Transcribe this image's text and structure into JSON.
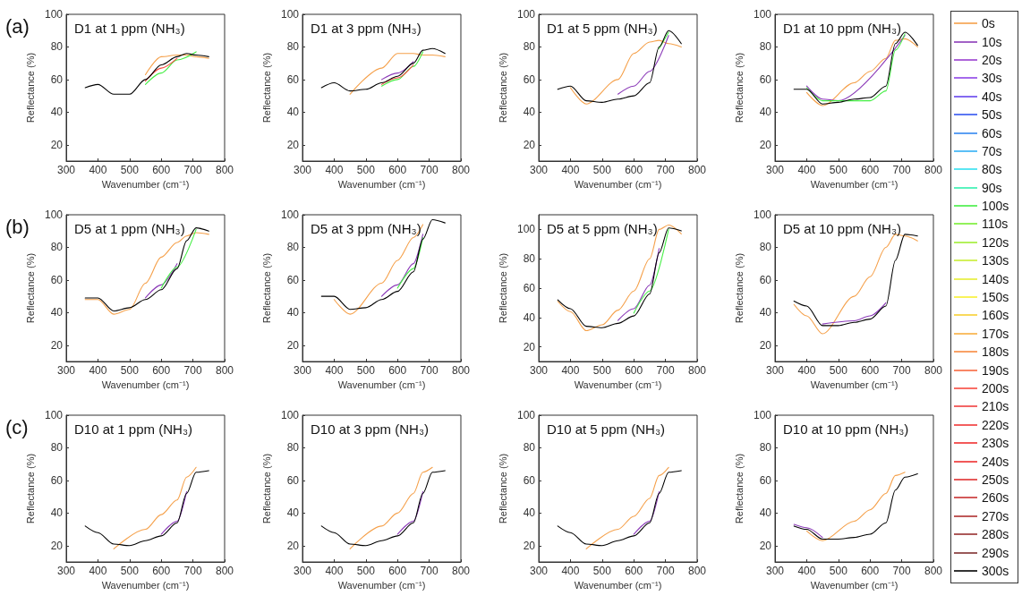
{
  "chart_data": [
    {
      "type": "line",
      "title": "D1 at 1 ppm (NH₃)",
      "xlabel": "Wavenumber (cm⁻¹)",
      "ylabel": "Reflectance (%)",
      "annotations": [
        "(a)"
      ],
      "legend": "right",
      "marker": "none",
      "x": [
        360,
        400,
        450,
        500,
        550,
        600,
        650,
        680,
        710,
        750
      ],
      "xlim": [
        300,
        800
      ],
      "xticks": [
        300,
        400,
        500,
        600,
        700,
        800
      ],
      "ylim": [
        10,
        100
      ],
      "yticks": [
        20,
        40,
        60,
        80,
        100
      ],
      "series": [
        {
          "name": "0s",
          "color": "#f5a04a",
          "values": [
            null,
            null,
            null,
            null,
            63,
            74,
            75,
            75,
            74,
            73
          ]
        },
        {
          "name": "10s",
          "color": "#8b3ab8",
          "values": [
            null,
            null,
            null,
            null,
            null,
            null,
            null,
            null,
            null,
            null
          ]
        },
        {
          "name": "20s",
          "color": "#9a3fd0",
          "values": [
            null,
            null,
            null,
            null,
            null,
            null,
            null,
            null,
            null,
            null
          ]
        },
        {
          "name": "30s",
          "color": "#8f45e8",
          "values": [
            null,
            null,
            null,
            null,
            null,
            null,
            null,
            null,
            null,
            null
          ]
        },
        {
          "name": "40s",
          "color": "#6644ee",
          "values": [
            null,
            null,
            null,
            null,
            null,
            null,
            null,
            null,
            null,
            null
          ]
        },
        {
          "name": "50s",
          "color": "#3355f0",
          "values": [
            null,
            null,
            null,
            null,
            null,
            null,
            null,
            null,
            null,
            null
          ]
        },
        {
          "name": "60s",
          "color": "#3388f0",
          "values": [
            null,
            null,
            null,
            null,
            null,
            null,
            null,
            null,
            null,
            null
          ]
        },
        {
          "name": "70s",
          "color": "#33b0f5",
          "values": [
            null,
            null,
            null,
            null,
            null,
            null,
            null,
            null,
            null,
            null
          ]
        },
        {
          "name": "80s",
          "color": "#33e0f0",
          "values": [
            null,
            null,
            null,
            null,
            null,
            null,
            null,
            null,
            null,
            null
          ]
        },
        {
          "name": "90s",
          "color": "#33f0b0",
          "values": [
            null,
            null,
            null,
            null,
            null,
            null,
            null,
            null,
            null,
            null
          ]
        },
        {
          "name": "100s",
          "color": "#44ee44",
          "values": [
            null,
            null,
            null,
            null,
            57,
            64,
            72,
            null,
            77,
            null
          ]
        },
        {
          "name": "110s",
          "color": "#77ee33",
          "values": [
            null,
            null,
            null,
            null,
            null,
            null,
            null,
            null,
            null,
            null
          ]
        },
        {
          "name": "120s",
          "color": "#a0ee33",
          "values": [
            null,
            null,
            null,
            null,
            null,
            null,
            null,
            null,
            null,
            null
          ]
        },
        {
          "name": "130s",
          "color": "#c8ee33",
          "values": [
            null,
            null,
            null,
            null,
            null,
            null,
            null,
            null,
            null,
            null
          ]
        },
        {
          "name": "140s",
          "color": "#e6ee33",
          "values": [
            null,
            null,
            null,
            null,
            null,
            null,
            null,
            null,
            null,
            null
          ]
        },
        {
          "name": "150s",
          "color": "#f8f033",
          "values": [
            null,
            null,
            null,
            null,
            null,
            null,
            null,
            null,
            null,
            null
          ]
        },
        {
          "name": "160s",
          "color": "#f8d033",
          "values": [
            null,
            null,
            null,
            null,
            null,
            null,
            null,
            null,
            null,
            null
          ]
        },
        {
          "name": "170s",
          "color": "#f8b040",
          "values": [
            null,
            null,
            null,
            null,
            null,
            null,
            null,
            null,
            null,
            null
          ]
        },
        {
          "name": "180s",
          "color": "#f88a40",
          "values": [
            null,
            null,
            null,
            null,
            null,
            null,
            null,
            null,
            null,
            null
          ]
        },
        {
          "name": "190s",
          "color": "#f86a40",
          "values": [
            null,
            null,
            null,
            null,
            null,
            null,
            null,
            null,
            null,
            null
          ]
        },
        {
          "name": "200s",
          "color": "#f84a40",
          "values": [
            null,
            null,
            null,
            null,
            59,
            67,
            73,
            null,
            null,
            null
          ]
        },
        {
          "name": "210s",
          "color": "#f04040",
          "values": [
            null,
            null,
            null,
            null,
            null,
            null,
            null,
            null,
            null,
            null
          ]
        },
        {
          "name": "220s",
          "color": "#f03838",
          "values": [
            null,
            null,
            null,
            null,
            null,
            null,
            null,
            null,
            null,
            null
          ]
        },
        {
          "name": "230s",
          "color": "#f03030",
          "values": [
            null,
            null,
            null,
            null,
            null,
            null,
            null,
            null,
            null,
            null
          ]
        },
        {
          "name": "240s",
          "color": "#ee3030",
          "values": [
            null,
            null,
            null,
            null,
            null,
            null,
            null,
            null,
            null,
            null
          ]
        },
        {
          "name": "250s",
          "color": "#e03030",
          "values": [
            null,
            null,
            null,
            null,
            null,
            null,
            null,
            null,
            null,
            null
          ]
        },
        {
          "name": "260s",
          "color": "#c83030",
          "values": [
            null,
            null,
            null,
            null,
            null,
            null,
            null,
            null,
            null,
            null
          ]
        },
        {
          "name": "270s",
          "color": "#b03030",
          "values": [
            null,
            null,
            null,
            null,
            null,
            null,
            null,
            null,
            null,
            null
          ]
        },
        {
          "name": "280s",
          "color": "#983030",
          "values": [
            null,
            null,
            null,
            null,
            null,
            null,
            null,
            null,
            null,
            null
          ]
        },
        {
          "name": "290s",
          "color": "#803030",
          "values": [
            null,
            null,
            null,
            null,
            null,
            null,
            null,
            null,
            null,
            null
          ]
        },
        {
          "name": "300s",
          "color": "#000000",
          "values": [
            55,
            57,
            51,
            51,
            60,
            69,
            74,
            76,
            75,
            74
          ]
        }
      ]
    },
    {
      "type": "line",
      "title": "D1 at 3 ppm (NH₃)",
      "xlabel": "Wavenumber (cm⁻¹)",
      "ylabel": "Reflectance (%)",
      "marker": "none",
      "x": [
        360,
        400,
        450,
        500,
        550,
        600,
        650,
        680,
        710,
        750
      ],
      "xlim": [
        300,
        800
      ],
      "xticks": [
        300,
        400,
        500,
        600,
        700,
        800
      ],
      "ylim": [
        10,
        100
      ],
      "yticks": [
        20,
        40,
        60,
        80,
        100
      ],
      "series": [
        {
          "color": "#f5a04a",
          "values": [
            null,
            null,
            51,
            null,
            67,
            76,
            76,
            75,
            75,
            74
          ]
        },
        {
          "color": "#8b3ab8",
          "values": [
            null,
            null,
            null,
            null,
            60,
            64,
            71,
            null,
            null,
            null
          ]
        },
        {
          "color": "#44ee44",
          "values": [
            null,
            null,
            null,
            null,
            56,
            60,
            68,
            77,
            null,
            null
          ]
        },
        {
          "color": "#f84a40",
          "values": [
            null,
            null,
            null,
            null,
            57,
            61,
            69,
            null,
            null,
            null
          ]
        },
        {
          "color": "#000000",
          "values": [
            55,
            58,
            53,
            54,
            58,
            62,
            70,
            78,
            79,
            76
          ]
        }
      ]
    },
    {
      "type": "line",
      "title": "D1 at 5 ppm (NH₃)",
      "xlabel": "Wavenumber (cm⁻¹)",
      "ylabel": "Reflectance (%)",
      "marker": "none",
      "x": [
        360,
        400,
        450,
        500,
        550,
        600,
        650,
        680,
        710,
        750
      ],
      "xlim": [
        300,
        800
      ],
      "xticks": [
        300,
        400,
        500,
        600,
        700,
        800
      ],
      "ylim": [
        10,
        100
      ],
      "yticks": [
        20,
        40,
        60,
        80,
        100
      ],
      "series": [
        {
          "color": "#f5a04a",
          "values": [
            null,
            55,
            45,
            null,
            60,
            76,
            83,
            84,
            82,
            80
          ]
        },
        {
          "color": "#8b3ab8",
          "values": [
            null,
            null,
            null,
            null,
            51,
            56,
            65,
            null,
            87,
            null
          ]
        },
        {
          "color": "#44ee44",
          "values": [
            null,
            null,
            null,
            null,
            null,
            null,
            null,
            79,
            89,
            null
          ]
        },
        {
          "color": "#000000",
          "values": [
            54,
            56,
            47,
            46,
            48,
            50,
            58,
            80,
            90,
            82
          ]
        }
      ]
    },
    {
      "type": "line",
      "title": "D1 at 10 ppm (NH₃)",
      "xlabel": "Wavenumber (cm⁻¹)",
      "ylabel": "Reflectance (%)",
      "marker": "none",
      "x": [
        360,
        400,
        450,
        500,
        550,
        600,
        650,
        680,
        710,
        750
      ],
      "xlim": [
        300,
        800
      ],
      "xticks": [
        300,
        400,
        500,
        600,
        700,
        800
      ],
      "ylim": [
        10,
        100
      ],
      "yticks": [
        20,
        40,
        60,
        80,
        100
      ],
      "series": [
        {
          "color": "#f5a04a",
          "values": [
            null,
            52,
            44,
            null,
            58,
            65,
            73,
            84,
            85,
            80
          ]
        },
        {
          "color": "#8b3ab8",
          "values": [
            null,
            56,
            48,
            47,
            null,
            null,
            null,
            null,
            87,
            null
          ]
        },
        {
          "color": "#44ee44",
          "values": [
            null,
            55,
            47,
            null,
            47,
            47,
            53,
            78,
            88,
            null
          ]
        },
        {
          "color": "#000000",
          "values": [
            54,
            54,
            45,
            46,
            48,
            49,
            56,
            82,
            89,
            81
          ]
        }
      ]
    },
    {
      "type": "line",
      "title": "D5 at 1 ppm (NH₃)",
      "xlabel": "Wavenumber (cm⁻¹)",
      "ylabel": "Reflectance (%)",
      "annotations": [
        "(b)"
      ],
      "marker": "none",
      "x": [
        360,
        400,
        450,
        500,
        550,
        600,
        650,
        680,
        710,
        750
      ],
      "xlim": [
        300,
        800
      ],
      "xticks": [
        300,
        400,
        500,
        600,
        700,
        800
      ],
      "ylim": [
        10,
        100
      ],
      "yticks": [
        20,
        40,
        60,
        80,
        100
      ],
      "series": [
        {
          "color": "#f5a04a",
          "values": [
            48,
            48,
            39,
            42,
            58,
            74,
            83,
            87,
            89,
            88
          ]
        },
        {
          "color": "#8b3ab8",
          "values": [
            null,
            null,
            null,
            null,
            49,
            57,
            70,
            null,
            null,
            null
          ]
        },
        {
          "color": "#44ee44",
          "values": [
            null,
            null,
            null,
            null,
            null,
            55,
            68,
            null,
            91,
            null
          ]
        },
        {
          "color": "#000000",
          "values": [
            49,
            49,
            41,
            43,
            48,
            54,
            67,
            84,
            92,
            90
          ]
        }
      ]
    },
    {
      "type": "line",
      "title": "D5 at 3 ppm (NH₃)",
      "xlabel": "Wavenumber (cm⁻¹)",
      "ylabel": "Reflectance (%)",
      "marker": "none",
      "x": [
        360,
        400,
        450,
        500,
        550,
        600,
        650,
        680,
        710,
        750
      ],
      "xlim": [
        300,
        800
      ],
      "xticks": [
        300,
        400,
        500,
        600,
        700,
        800
      ],
      "ylim": [
        10,
        100
      ],
      "yticks": [
        20,
        40,
        60,
        80,
        100
      ],
      "series": [
        {
          "color": "#f5a04a",
          "values": [
            null,
            48,
            39,
            null,
            58,
            72,
            86,
            94,
            null,
            null
          ]
        },
        {
          "color": "#8b3ab8",
          "values": [
            null,
            null,
            null,
            null,
            50,
            57,
            70,
            88,
            null,
            null
          ]
        },
        {
          "color": "#44ee44",
          "values": [
            null,
            null,
            null,
            null,
            null,
            55,
            67,
            86,
            null,
            null
          ]
        },
        {
          "color": "#000000",
          "values": [
            50,
            50,
            42,
            43,
            48,
            53,
            65,
            85,
            97,
            95
          ]
        }
      ]
    },
    {
      "type": "line",
      "title": "D5 at 5 ppm (NH₃)",
      "xlabel": "Wavenumber (cm⁻¹)",
      "ylabel": "Reflectance (%)",
      "marker": "none",
      "x": [
        360,
        400,
        450,
        500,
        550,
        600,
        650,
        680,
        710,
        750
      ],
      "xlim": [
        300,
        800
      ],
      "xticks": [
        300,
        400,
        500,
        600,
        700,
        800
      ],
      "ylim": [
        10,
        110
      ],
      "yticks": [
        20,
        40,
        60,
        80,
        100
      ],
      "series": [
        {
          "color": "#f5a04a",
          "values": [
            51,
            44,
            31,
            35,
            45,
            58,
            80,
            100,
            103,
            97
          ]
        },
        {
          "color": "#8b3ab8",
          "values": [
            null,
            null,
            null,
            null,
            38,
            46,
            62,
            87,
            null,
            null
          ]
        },
        {
          "color": "#44ee44",
          "values": [
            null,
            null,
            null,
            null,
            null,
            43,
            58,
            null,
            100,
            null
          ]
        },
        {
          "color": "#000000",
          "values": [
            52,
            46,
            34,
            33,
            36,
            41,
            56,
            84,
            101,
            99
          ]
        }
      ]
    },
    {
      "type": "line",
      "title": "D5 at 10 ppm (NH₃)",
      "xlabel": "Wavenumber (cm⁻¹)",
      "ylabel": "Reflectance (%)",
      "marker": "none",
      "x": [
        360,
        400,
        450,
        500,
        550,
        600,
        650,
        680,
        710,
        750
      ],
      "xlim": [
        300,
        800
      ],
      "xticks": [
        300,
        400,
        500,
        600,
        700,
        800
      ],
      "ylim": [
        10,
        100
      ],
      "yticks": [
        20,
        40,
        60,
        80,
        100
      ],
      "series": [
        {
          "color": "#f5a04a",
          "values": [
            45,
            38,
            27,
            null,
            50,
            62,
            80,
            88,
            87,
            84
          ]
        },
        {
          "color": "#8b3ab8",
          "values": [
            null,
            null,
            33,
            null,
            35,
            38,
            46,
            null,
            null,
            null
          ]
        },
        {
          "color": "#000000",
          "values": [
            47,
            44,
            32,
            32,
            34,
            36,
            44,
            72,
            88,
            87
          ]
        }
      ]
    },
    {
      "type": "line",
      "title": "D10 at 1 ppm (NH₃)",
      "xlabel": "Wavenumber (cm⁻¹)",
      "ylabel": "Reflectance (%)",
      "annotations": [
        "(c)"
      ],
      "marker": "none",
      "x": [
        360,
        400,
        450,
        500,
        550,
        600,
        650,
        680,
        710,
        750
      ],
      "xlim": [
        300,
        800
      ],
      "xticks": [
        300,
        400,
        500,
        600,
        700,
        800
      ],
      "ylim": [
        10,
        100
      ],
      "yticks": [
        20,
        40,
        60,
        80,
        100
      ],
      "series": [
        {
          "color": "#f5a04a",
          "values": [
            null,
            null,
            18,
            null,
            30,
            39,
            48,
            62,
            68,
            null
          ]
        },
        {
          "color": "#8b3ab8",
          "values": [
            null,
            null,
            null,
            null,
            null,
            27,
            35,
            53,
            null,
            null
          ]
        },
        {
          "color": "#000000",
          "values": [
            32,
            28,
            21,
            20,
            23,
            26,
            34,
            52,
            65,
            66
          ]
        }
      ]
    },
    {
      "type": "line",
      "title": "D10 at 3 ppm (NH₃)",
      "xlabel": "Wavenumber (cm⁻¹)",
      "ylabel": "Reflectance (%)",
      "marker": "none",
      "x": [
        360,
        400,
        450,
        500,
        550,
        600,
        650,
        680,
        710,
        750
      ],
      "xlim": [
        300,
        800
      ],
      "xticks": [
        300,
        400,
        500,
        600,
        700,
        800
      ],
      "ylim": [
        10,
        100
      ],
      "yticks": [
        20,
        40,
        60,
        80,
        100
      ],
      "series": [
        {
          "color": "#f5a04a",
          "values": [
            null,
            null,
            18,
            null,
            32,
            40,
            52,
            65,
            68,
            null
          ]
        },
        {
          "color": "#8b3ab8",
          "values": [
            null,
            null,
            null,
            null,
            null,
            27,
            35,
            53,
            null,
            null
          ]
        },
        {
          "color": "#000000",
          "values": [
            32,
            28,
            21,
            20,
            23,
            26,
            34,
            52,
            65,
            66
          ]
        }
      ]
    },
    {
      "type": "line",
      "title": "D10 at 5 ppm (NH₃)",
      "xlabel": "Wavenumber (cm⁻¹)",
      "ylabel": "Reflectance (%)",
      "marker": "none",
      "x": [
        360,
        400,
        450,
        500,
        550,
        600,
        650,
        680,
        710,
        750
      ],
      "xlim": [
        300,
        800
      ],
      "xticks": [
        300,
        400,
        500,
        600,
        700,
        800
      ],
      "ylim": [
        10,
        100
      ],
      "yticks": [
        20,
        40,
        60,
        80,
        100
      ],
      "series": [
        {
          "color": "#f5a04a",
          "values": [
            null,
            null,
            18,
            null,
            30,
            38,
            49,
            63,
            68,
            null
          ]
        },
        {
          "color": "#8b3ab8",
          "values": [
            null,
            null,
            null,
            null,
            null,
            27,
            35,
            53,
            null,
            null
          ]
        },
        {
          "color": "#000000",
          "values": [
            32,
            28,
            21,
            20,
            23,
            26,
            34,
            52,
            65,
            66
          ]
        }
      ]
    },
    {
      "type": "line",
      "title": "D10 at 10 ppm (NH₃)",
      "xlabel": "Wavenumber (cm⁻¹)",
      "ylabel": "Reflectance (%)",
      "marker": "none",
      "x": [
        360,
        400,
        450,
        500,
        550,
        600,
        650,
        680,
        710,
        750
      ],
      "xlim": [
        300,
        800
      ],
      "xticks": [
        300,
        400,
        500,
        600,
        700,
        800
      ],
      "ylim": [
        10,
        100
      ],
      "yticks": [
        20,
        40,
        60,
        80,
        100
      ],
      "series": [
        {
          "color": "#f5a04a",
          "values": [
            null,
            29,
            23,
            null,
            35,
            42,
            52,
            63,
            65,
            null
          ]
        },
        {
          "color": "#8b3ab8",
          "values": [
            33,
            31,
            25,
            null,
            null,
            null,
            null,
            null,
            null,
            null
          ]
        },
        {
          "color": "#000000",
          "values": [
            32,
            30,
            24,
            24,
            25,
            27,
            34,
            54,
            62,
            64
          ]
        }
      ]
    }
  ]
}
